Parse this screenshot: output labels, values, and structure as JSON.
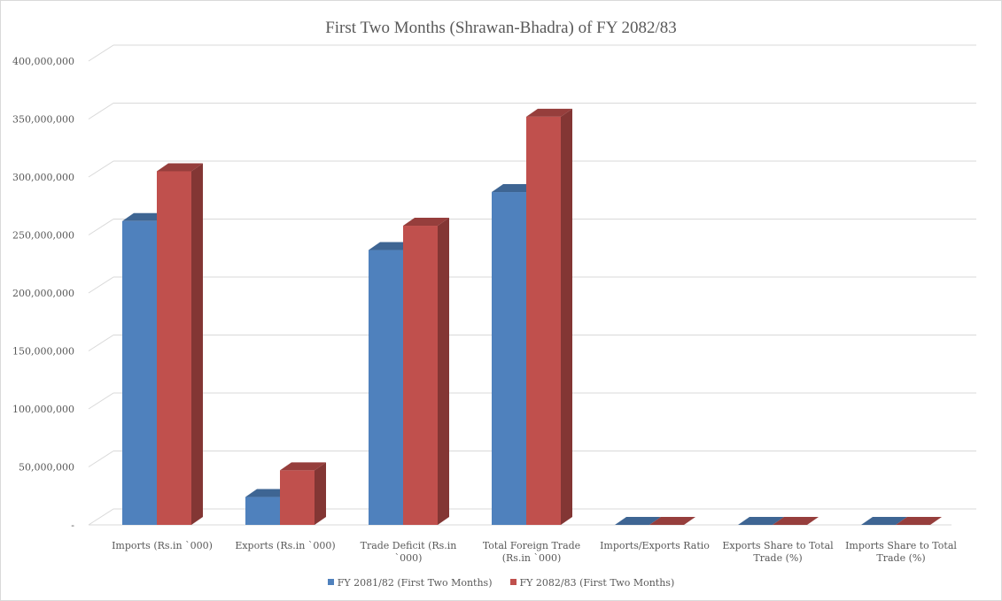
{
  "chart_data": {
    "type": "bar",
    "title": "First Two Months (Shrawan-Bhadra) of FY 2082/83",
    "categories": [
      [
        "Imports (Rs.in `000)"
      ],
      [
        "Exports (Rs.in `000)"
      ],
      [
        "Trade Deficit (Rs.in",
        "`000)"
      ],
      [
        "Total  Foreign Trade",
        "(Rs.in `000)"
      ],
      [
        "Imports/Exports Ratio"
      ],
      [
        "Exports Share to Total",
        "Trade (%)"
      ],
      [
        "Imports Share to Total",
        "Trade (%)"
      ]
    ],
    "series": [
      {
        "name": "FY 2081/82 (First Two Months)",
        "color": "#4f81bd",
        "values": [
          262000000,
          24000000,
          237000000,
          287000000,
          10.9,
          8.4,
          91.6
        ]
      },
      {
        "name": "FY 2082/83 (First Two Months)",
        "color": "#c0504d",
        "values": [
          305000000,
          47000000,
          258000000,
          352000000,
          6.5,
          13.3,
          86.7
        ]
      }
    ],
    "ylim": [
      0,
      400000000
    ],
    "yticks": [
      {
        "value": 0,
        "label": "-"
      },
      {
        "value": 50000000,
        "label": "50,000,000"
      },
      {
        "value": 100000000,
        "label": "100,000,000"
      },
      {
        "value": 150000000,
        "label": "150,000,000"
      },
      {
        "value": 200000000,
        "label": "200,000,000"
      },
      {
        "value": 250000000,
        "label": "250,000,000"
      },
      {
        "value": 300000000,
        "label": "300,000,000"
      },
      {
        "value": 350000000,
        "label": "350,000,000"
      },
      {
        "value": 400000000,
        "label": "400,000,000"
      }
    ],
    "grid": true,
    "legend_position": "bottom",
    "style": "3d-clustered-column"
  }
}
